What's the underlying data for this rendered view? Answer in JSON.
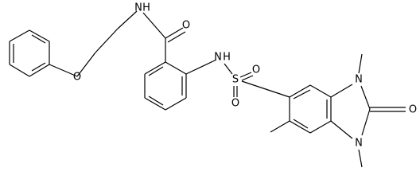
{
  "atoms": [
    {
      "label": "O"
    },
    {
      "label": "N"
    },
    {
      "label": "H"
    },
    {
      "label": "O"
    },
    {
      "label": "N"
    },
    {
      "label": "H"
    },
    {
      "label": "S"
    },
    {
      "label": "O"
    },
    {
      "label": "O"
    },
    {
      "label": "N"
    },
    {
      "label": "N"
    },
    {
      "label": "O"
    }
  ]
}
